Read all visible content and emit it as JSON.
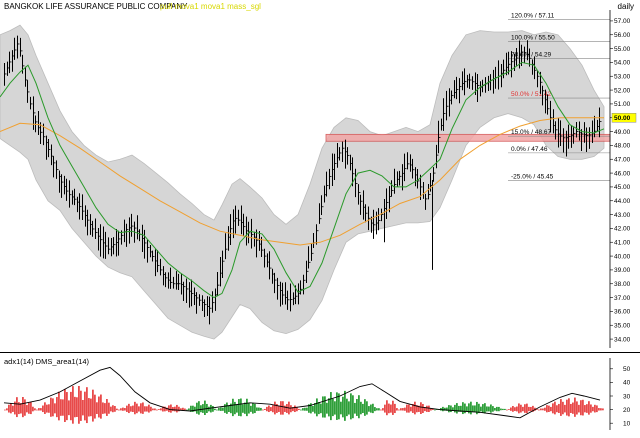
{
  "header": {
    "title": "BANGKOK LIFE ASSURANCE PUBLIC COMPANY",
    "legend": "pull mova1 mova1 mass_sgl",
    "period": "daily"
  },
  "indicator": {
    "label": "adx1(14) DMS_area1(14)"
  },
  "colors": {
    "band_fill": "#d6d6d6",
    "band_edge": "#bcbcbc",
    "price": "#000000",
    "ma_fast": "#2a9a2a",
    "ma_slow": "#f0a030",
    "zone": "#f2a6a6",
    "zone_edge": "#d04848",
    "fib_red": "#e03030",
    "dms_pos": "#2f9f3a",
    "dms_neg": "#e84a4a",
    "last_price_box": "#ffff00"
  },
  "chart_data": [
    {
      "type": "candlestick",
      "ylim": [
        33.5,
        57.5
      ],
      "y_ticks": [
        "34.00",
        "35.00",
        "36.00",
        "37.00",
        "38.00",
        "39.00",
        "40.00",
        "41.00",
        "42.00",
        "43.00",
        "44.00",
        "45.00",
        "46.00",
        "47.00",
        "48.00",
        "49.00",
        "50.00",
        "51.00",
        "52.00",
        "53.00",
        "54.00",
        "55.00",
        "56.00",
        "57.00"
      ],
      "last_price": "50.00",
      "grid": false,
      "price_path": [
        [
          0,
          52.5
        ],
        [
          6,
          53.5
        ],
        [
          12,
          54.5
        ],
        [
          18,
          55.5
        ],
        [
          24,
          53
        ],
        [
          30,
          51
        ],
        [
          36,
          49.5
        ],
        [
          44,
          48.5
        ],
        [
          52,
          47
        ],
        [
          60,
          45.5
        ],
        [
          68,
          44.5
        ],
        [
          76,
          44
        ],
        [
          84,
          43
        ],
        [
          92,
          42
        ],
        [
          100,
          41.2
        ],
        [
          108,
          40.5
        ],
        [
          116,
          41
        ],
        [
          124,
          41.8
        ],
        [
          132,
          42.2
        ],
        [
          140,
          41.5
        ],
        [
          148,
          40.5
        ],
        [
          156,
          39.5
        ],
        [
          164,
          38.5
        ],
        [
          172,
          38
        ],
        [
          180,
          38
        ],
        [
          188,
          37.5
        ],
        [
          196,
          37
        ],
        [
          204,
          36.5
        ],
        [
          210,
          36.2
        ],
        [
          216,
          37.5
        ],
        [
          222,
          39.5
        ],
        [
          228,
          41.5
        ],
        [
          234,
          42.8
        ],
        [
          240,
          42.5
        ],
        [
          246,
          41.8
        ],
        [
          252,
          41.5
        ],
        [
          258,
          41
        ],
        [
          264,
          40
        ],
        [
          270,
          39
        ],
        [
          276,
          38
        ],
        [
          282,
          37.2
        ],
        [
          288,
          36.8
        ],
        [
          294,
          37
        ],
        [
          300,
          37.5
        ],
        [
          306,
          39
        ],
        [
          312,
          40.5
        ],
        [
          318,
          42.5
        ],
        [
          324,
          44.5
        ],
        [
          330,
          46
        ],
        [
          336,
          47
        ],
        [
          342,
          47.8
        ],
        [
          348,
          47.2
        ],
        [
          354,
          45.5
        ],
        [
          360,
          44
        ],
        [
          366,
          43
        ],
        [
          372,
          42.2
        ],
        [
          378,
          42.5
        ],
        [
          384,
          43.5
        ],
        [
          390,
          44.5
        ],
        [
          396,
          45.5
        ],
        [
          402,
          46
        ],
        [
          408,
          46.8
        ],
        [
          414,
          46
        ],
        [
          420,
          45
        ],
        [
          426,
          44
        ],
        [
          432,
          45.5
        ],
        [
          438,
          48.5
        ],
        [
          444,
          50.5
        ],
        [
          450,
          51.5
        ],
        [
          456,
          52
        ],
        [
          462,
          52.5
        ],
        [
          468,
          52.8
        ],
        [
          474,
          52.5
        ],
        [
          480,
          52.2
        ],
        [
          486,
          52.5
        ],
        [
          492,
          52.8
        ],
        [
          498,
          53
        ],
        [
          504,
          53.5
        ],
        [
          510,
          54
        ],
        [
          516,
          54.3
        ],
        [
          522,
          54.8
        ],
        [
          528,
          54.5
        ],
        [
          534,
          53.5
        ],
        [
          540,
          52.5
        ],
        [
          546,
          51
        ],
        [
          552,
          49.5
        ],
        [
          558,
          48.8
        ],
        [
          564,
          48.5
        ],
        [
          570,
          48.7
        ],
        [
          576,
          49
        ],
        [
          582,
          48.8
        ],
        [
          588,
          48.7
        ],
        [
          594,
          49
        ],
        [
          600,
          49.8
        ]
      ],
      "upper_band_path": [
        [
          0,
          56
        ],
        [
          10,
          56.3
        ],
        [
          20,
          56.7
        ],
        [
          28,
          56
        ],
        [
          36,
          54.5
        ],
        [
          48,
          52.5
        ],
        [
          60,
          50.5
        ],
        [
          72,
          49
        ],
        [
          84,
          48
        ],
        [
          96,
          47.3
        ],
        [
          108,
          46.8
        ],
        [
          120,
          47
        ],
        [
          132,
          47.3
        ],
        [
          144,
          46.7
        ],
        [
          156,
          46
        ],
        [
          168,
          45.3
        ],
        [
          180,
          44.5
        ],
        [
          192,
          43.8
        ],
        [
          204,
          43
        ],
        [
          214,
          42.6
        ],
        [
          222,
          43.7
        ],
        [
          232,
          45.2
        ],
        [
          240,
          45.6
        ],
        [
          250,
          45
        ],
        [
          262,
          44.2
        ],
        [
          274,
          43
        ],
        [
          286,
          42.3
        ],
        [
          298,
          43
        ],
        [
          310,
          45.2
        ],
        [
          322,
          47.8
        ],
        [
          334,
          49.3
        ],
        [
          346,
          50
        ],
        [
          358,
          49.8
        ],
        [
          370,
          49
        ],
        [
          382,
          48.7
        ],
        [
          394,
          49
        ],
        [
          406,
          49.3
        ],
        [
          418,
          49
        ],
        [
          430,
          49.5
        ],
        [
          440,
          52.5
        ],
        [
          452,
          54.5
        ],
        [
          466,
          56
        ],
        [
          480,
          56.3
        ],
        [
          494,
          56.2
        ],
        [
          508,
          56.2
        ],
        [
          522,
          56.3
        ],
        [
          534,
          56
        ],
        [
          546,
          56.2
        ],
        [
          558,
          56
        ],
        [
          570,
          55
        ],
        [
          582,
          53.8
        ],
        [
          594,
          52
        ],
        [
          604,
          50.8
        ]
      ],
      "lower_band_path": [
        [
          0,
          48.5
        ],
        [
          10,
          48
        ],
        [
          20,
          47.5
        ],
        [
          28,
          47
        ],
        [
          36,
          45.5
        ],
        [
          48,
          44
        ],
        [
          60,
          43.3
        ],
        [
          72,
          42
        ],
        [
          84,
          41
        ],
        [
          96,
          40
        ],
        [
          108,
          39.2
        ],
        [
          120,
          38.8
        ],
        [
          132,
          38.5
        ],
        [
          144,
          37.5
        ],
        [
          156,
          36.5
        ],
        [
          168,
          35.5
        ],
        [
          180,
          35
        ],
        [
          192,
          34.5
        ],
        [
          204,
          34.2
        ],
        [
          214,
          34
        ],
        [
          222,
          34.5
        ],
        [
          232,
          35.6
        ],
        [
          240,
          36.5
        ],
        [
          250,
          36.2
        ],
        [
          262,
          35.2
        ],
        [
          274,
          34.6
        ],
        [
          286,
          34.4
        ],
        [
          298,
          34.7
        ],
        [
          310,
          35.4
        ],
        [
          322,
          36.8
        ],
        [
          334,
          39
        ],
        [
          346,
          41
        ],
        [
          358,
          41.6
        ],
        [
          370,
          41.8
        ],
        [
          382,
          42
        ],
        [
          394,
          42.2
        ],
        [
          406,
          42.4
        ],
        [
          418,
          42.4
        ],
        [
          430,
          42.5
        ],
        [
          440,
          43.5
        ],
        [
          452,
          45.5
        ],
        [
          466,
          48
        ],
        [
          480,
          49.3
        ],
        [
          494,
          50
        ],
        [
          508,
          50.3
        ],
        [
          522,
          50
        ],
        [
          534,
          49.5
        ],
        [
          546,
          48
        ],
        [
          558,
          47.2
        ],
        [
          570,
          47
        ],
        [
          582,
          47
        ],
        [
          594,
          47.2
        ],
        [
          604,
          47.8
        ]
      ],
      "ma_fast_path": [
        [
          0,
          51.5
        ],
        [
          10,
          52.5
        ],
        [
          20,
          53.3
        ],
        [
          28,
          53.8
        ],
        [
          36,
          52.5
        ],
        [
          48,
          50
        ],
        [
          60,
          48
        ],
        [
          72,
          46.5
        ],
        [
          84,
          45
        ],
        [
          96,
          43.5
        ],
        [
          108,
          42.3
        ],
        [
          120,
          41.7
        ],
        [
          132,
          41.8
        ],
        [
          144,
          41.5
        ],
        [
          156,
          40.5
        ],
        [
          168,
          39.5
        ],
        [
          180,
          38.8
        ],
        [
          192,
          38.2
        ],
        [
          204,
          37.5
        ],
        [
          214,
          37
        ],
        [
          222,
          37.3
        ],
        [
          232,
          39
        ],
        [
          240,
          41
        ],
        [
          250,
          41.8
        ],
        [
          262,
          41.6
        ],
        [
          274,
          40.5
        ],
        [
          286,
          38.8
        ],
        [
          298,
          37.4
        ],
        [
          310,
          37.8
        ],
        [
          322,
          39.5
        ],
        [
          334,
          42
        ],
        [
          346,
          44.5
        ],
        [
          358,
          46
        ],
        [
          370,
          46.2
        ],
        [
          382,
          45.8
        ],
        [
          394,
          45
        ],
        [
          406,
          45
        ],
        [
          418,
          45.5
        ],
        [
          430,
          46.3
        ],
        [
          440,
          47
        ],
        [
          452,
          49.2
        ],
        [
          466,
          51.3
        ],
        [
          480,
          52.2
        ],
        [
          494,
          52.8
        ],
        [
          508,
          53.3
        ],
        [
          522,
          54
        ],
        [
          534,
          53.8
        ],
        [
          546,
          52.5
        ],
        [
          558,
          50.8
        ],
        [
          570,
          49.5
        ],
        [
          582,
          49
        ],
        [
          594,
          48.9
        ],
        [
          604,
          49.2
        ]
      ],
      "ma_slow_path": [
        [
          0,
          49
        ],
        [
          20,
          49.6
        ],
        [
          40,
          49.5
        ],
        [
          60,
          48.7
        ],
        [
          80,
          47.8
        ],
        [
          100,
          46.8
        ],
        [
          120,
          45.8
        ],
        [
          140,
          44.9
        ],
        [
          160,
          44
        ],
        [
          180,
          43.2
        ],
        [
          200,
          42.4
        ],
        [
          220,
          41.8
        ],
        [
          240,
          41.5
        ],
        [
          260,
          41.2
        ],
        [
          280,
          41
        ],
        [
          300,
          40.8
        ],
        [
          320,
          41
        ],
        [
          340,
          41.5
        ],
        [
          360,
          42.3
        ],
        [
          380,
          43
        ],
        [
          400,
          43.8
        ],
        [
          420,
          44.3
        ],
        [
          440,
          45.5
        ],
        [
          460,
          47
        ],
        [
          480,
          48
        ],
        [
          500,
          48.8
        ],
        [
          520,
          49.4
        ],
        [
          540,
          49.8
        ],
        [
          560,
          50
        ],
        [
          580,
          50
        ],
        [
          604,
          50
        ]
      ],
      "zone": {
        "y_range": [
          48.3,
          48.8
        ],
        "x_start": 326
      },
      "fib_levels": [
        {
          "label": "120.0% / 57.11",
          "price": 57.11,
          "color": "#000000"
        },
        {
          "label": "100.0% / 55.50",
          "price": 55.5,
          "color": "#000000"
        },
        {
          "label": "78.6% / 54.29",
          "price": 54.29,
          "color": "#000000"
        },
        {
          "label": "50.0% / 51.42",
          "price": 51.42,
          "color": "#e03030"
        },
        {
          "label": "15.0% / 48.67",
          "price": 48.67,
          "color": "#000000"
        },
        {
          "label": "0.0% / 47.46",
          "price": 47.46,
          "color": "#000000"
        },
        {
          "label": "-25.0% / 45.45",
          "price": 45.45,
          "color": "#000000"
        }
      ],
      "fib_x_start": 508
    },
    {
      "type": "bar",
      "title": "adx1(14) DMS_area1(14)",
      "ylim": [
        5,
        55
      ],
      "y_ticks": [
        "10",
        "20",
        "30",
        "40",
        "50"
      ],
      "dms_segments": [
        {
          "x0": 4,
          "x1": 36,
          "v": -10
        },
        {
          "x0": 36,
          "x1": 118,
          "v": -18
        },
        {
          "x0": 118,
          "x1": 156,
          "v": -6
        },
        {
          "x0": 156,
          "x1": 186,
          "v": -4
        },
        {
          "x0": 186,
          "x1": 216,
          "v": 7
        },
        {
          "x0": 216,
          "x1": 262,
          "v": 9
        },
        {
          "x0": 262,
          "x1": 300,
          "v": -7
        },
        {
          "x0": 300,
          "x1": 380,
          "v": 14
        },
        {
          "x0": 380,
          "x1": 398,
          "v": -8
        },
        {
          "x0": 398,
          "x1": 434,
          "v": -6
        },
        {
          "x0": 434,
          "x1": 506,
          "v": 6
        },
        {
          "x0": 506,
          "x1": 538,
          "v": -5
        },
        {
          "x0": 538,
          "x1": 604,
          "v": -9
        }
      ],
      "adx_path": [
        [
          4,
          25
        ],
        [
          20,
          24
        ],
        [
          40,
          27
        ],
        [
          60,
          33
        ],
        [
          80,
          41
        ],
        [
          100,
          49
        ],
        [
          110,
          51
        ],
        [
          120,
          45
        ],
        [
          135,
          33
        ],
        [
          150,
          25
        ],
        [
          170,
          20
        ],
        [
          190,
          19
        ],
        [
          210,
          21
        ],
        [
          230,
          23
        ],
        [
          250,
          25
        ],
        [
          270,
          24
        ],
        [
          290,
          21
        ],
        [
          310,
          23
        ],
        [
          340,
          30
        ],
        [
          360,
          37
        ],
        [
          372,
          39
        ],
        [
          385,
          33
        ],
        [
          400,
          26
        ],
        [
          420,
          22
        ],
        [
          440,
          20
        ],
        [
          460,
          19
        ],
        [
          480,
          18
        ],
        [
          500,
          16
        ],
        [
          520,
          14
        ],
        [
          540,
          22
        ],
        [
          560,
          29
        ],
        [
          572,
          32
        ],
        [
          584,
          30
        ],
        [
          600,
          27
        ]
      ]
    }
  ]
}
